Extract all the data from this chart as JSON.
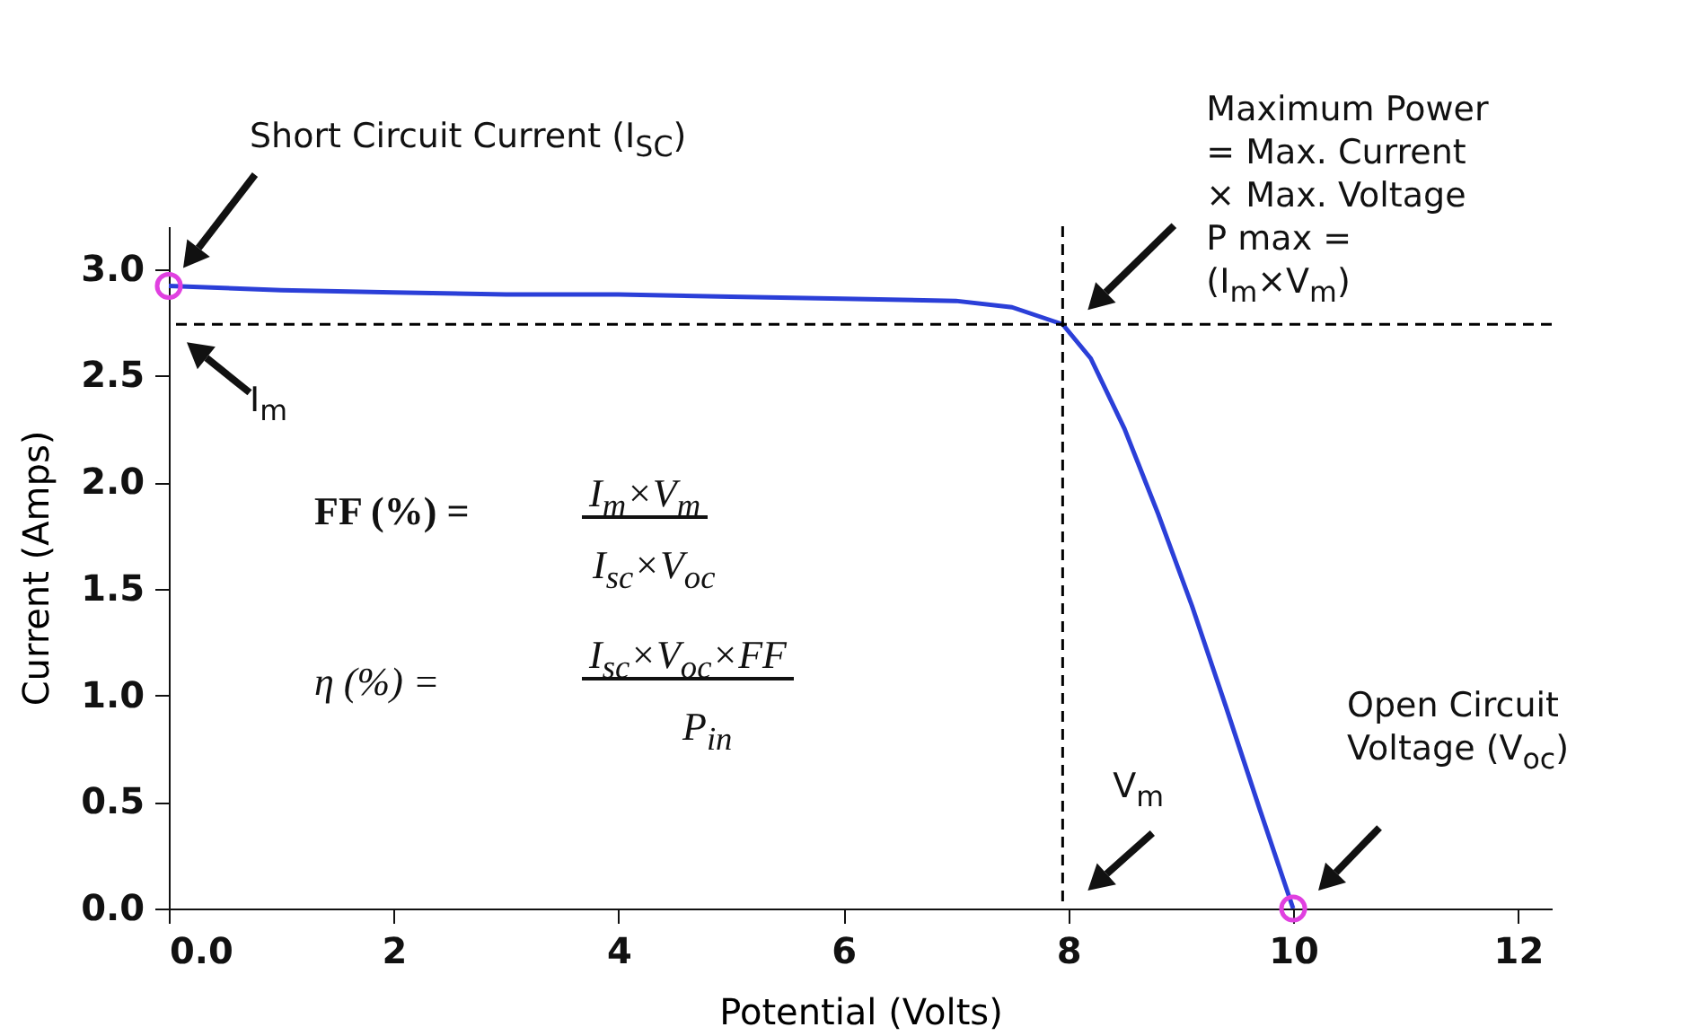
{
  "chart_data": {
    "type": "line",
    "xlabel": "Potential (Volts)",
    "ylabel": "Current (Amps)",
    "xlim": [
      0,
      12.3
    ],
    "ylim": [
      0,
      3.2
    ],
    "xticks": [
      {
        "value": 0,
        "label": "0.0"
      },
      2,
      4,
      6,
      8,
      10,
      12
    ],
    "yticks": [
      {
        "value": 0,
        "label": "0.0"
      },
      {
        "value": 0.5,
        "label": "0.5"
      },
      {
        "value": 1,
        "label": "1.0"
      },
      {
        "value": 1.5,
        "label": "1.5"
      },
      {
        "value": 2,
        "label": "2.0"
      },
      {
        "value": 2.5,
        "label": "2.5"
      },
      {
        "value": 3,
        "label": "3.0"
      }
    ],
    "grid": false,
    "series": [
      {
        "type": "line",
        "color": "#2b3fd8",
        "marker": "none",
        "line_style": "solid",
        "x": [
          0,
          1,
          2,
          3,
          4,
          5,
          6,
          7,
          7.5,
          7.95,
          8.2,
          8.5,
          8.8,
          9.1,
          9.4,
          9.7,
          10
        ],
        "values": [
          2.92,
          2.9,
          2.89,
          2.88,
          2.88,
          2.87,
          2.86,
          2.85,
          2.82,
          2.74,
          2.58,
          2.25,
          1.85,
          1.42,
          0.95,
          0.47,
          0
        ]
      },
      {
        "type": "scatter",
        "color": "#e040e0",
        "marker": "circle",
        "x": [
          0,
          10
        ],
        "values": [
          2.92,
          0
        ]
      }
    ],
    "ref_lines": [
      {
        "axis": "x",
        "value": 7.95,
        "line_style": "dashed",
        "color": "#000000"
      },
      {
        "axis": "y",
        "value": 2.74,
        "line_style": "dashed",
        "color": "#000000"
      }
    ],
    "annotations": [
      "Short Circuit Current (I$_{SC}$)",
      "I$_{m}$",
      "Maximum Power = Max. Current × Max. Voltage P max = (I$_{m}$×V$_{m}$)",
      "V$_{m}$",
      "Open Circuit Voltage (V$_{oc}$)",
      "FF (%) =",
      "I$_{m}$×V$_{m}$",
      "I$_{sc}$×V$_{oc}$",
      "η (%) =",
      "I$_{sc}$×V$_{oc}$×FF",
      "P$_{in}$"
    ]
  }
}
